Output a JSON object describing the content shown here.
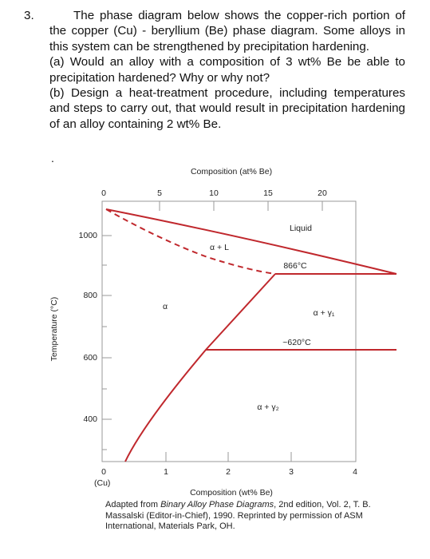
{
  "question": {
    "number": "3.",
    "intro": "The phase diagram below shows the copper-rich portion of the copper (Cu) - beryllium (Be) phase diagram. Some alloys in this system can be strengthened by precipitation hardening.",
    "part_a": "(a) Would an alloy with a composition of 3 wt% Be be able to precipitation hardened? Why or why not?",
    "part_b": "(b) Design a heat-treatment procedure, including temperatures and steps to carry out, that would result in precipitation hardening of an alloy containing 2 wt% Be."
  },
  "stray_mark": ".",
  "figure": {
    "top_axis_title": "Composition (at% Be)",
    "top_ticks": [
      "0",
      "5",
      "10",
      "15",
      "20"
    ],
    "y_axis_title": "Temperature (°C)",
    "y_ticks": [
      "1000",
      "800",
      "600",
      "400"
    ],
    "bottom_ticks": [
      "0",
      "1",
      "2",
      "3",
      "4"
    ],
    "bottom_left_label": "(Cu)",
    "bottom_axis_title": "Composition (wt% Be)",
    "regions": {
      "liquid": "Liquid",
      "alpha_l": "α + L",
      "eutectoid_866": "866°C",
      "alpha_gamma1": "α + γ₁",
      "eutectoid_620": "~620°C",
      "alpha": "α",
      "alpha_gamma2": "α + γ₂"
    },
    "caption": {
      "before": "Adapted from ",
      "title": "Binary Alloy Phase Diagrams",
      "after": ", 2nd edition, Vol. 2, T. B. Massalski (Editor-in-Chief), 1990. Reprinted by permission of ASM International, Materials Park, OH."
    }
  }
}
